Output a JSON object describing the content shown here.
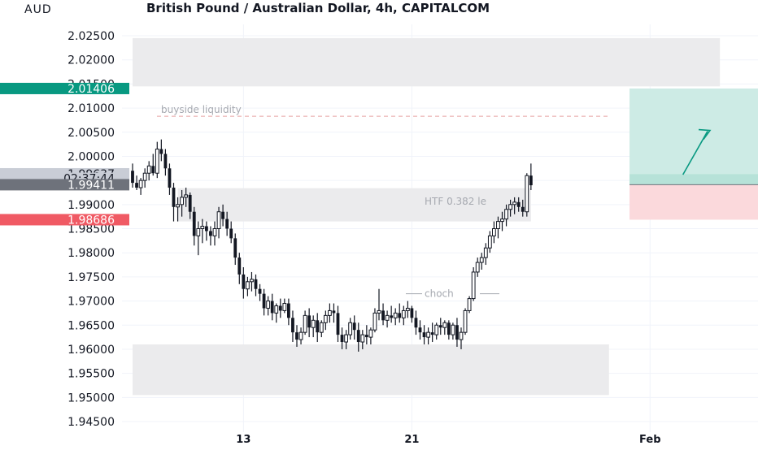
{
  "header": {
    "title": "British Pound / Australian Dollar, 4h, CAPITALCOM",
    "currency": "AUD"
  },
  "price_axis": {
    "ticks": [
      "2.02500",
      "2.02000",
      "2.01500",
      "2.01000",
      "2.00500",
      "2.00000",
      "1.99500",
      "1.99000",
      "1.98500",
      "1.98000",
      "1.97500",
      "1.97000",
      "1.96500",
      "1.96000",
      "1.95500",
      "1.95000",
      "1.94500"
    ]
  },
  "time_axis": {
    "ticks": [
      {
        "label": "13",
        "index": 27
      },
      {
        "label": "21",
        "index": 68
      },
      {
        "label": "Feb",
        "index": 126
      }
    ]
  },
  "price_labels": [
    {
      "name": "target-price-label",
      "text": "2.01406",
      "price": 2.01406,
      "color": "#089981"
    },
    {
      "name": "current-price-label",
      "text": "1.99637",
      "price": 1.99637,
      "color": "#c9cdd6"
    },
    {
      "name": "countdown-label",
      "text": "02:37:44",
      "price": 1.9941,
      "color": "#c9cdd6"
    },
    {
      "name": "entry-price-label",
      "text": "1.99411",
      "price": 1.99411,
      "color": "#6e727b"
    },
    {
      "name": "stop-price-label",
      "text": "1.98686",
      "price": 1.98686,
      "color": "#f05a64"
    }
  ],
  "annotations": {
    "buyside": "buyside liquidity",
    "htf": "HTF 0.382 le",
    "choch": "choch"
  },
  "colors": {
    "candle": "#131722",
    "zone": "#ebebed",
    "profit": "#cdebe5",
    "loss": "#fbd9dc",
    "arrow": "#089981",
    "dashed": "#e8a0a0",
    "grid": "#f0f3fa",
    "annotation": "#a6a9b0"
  },
  "chart_data": {
    "type": "candlestick",
    "title": "British Pound / Australian Dollar, 4h, CAPITALCOM",
    "ylabel": "AUD",
    "ylim": [
      1.9435,
      2.0275
    ],
    "y_ticks": [
      2.025,
      2.02,
      2.015,
      2.01,
      2.005,
      2.0,
      1.995,
      1.99,
      1.985,
      1.98,
      1.975,
      1.97,
      1.965,
      1.96,
      1.955,
      1.95,
      1.945
    ],
    "x_ticks": [
      "13",
      "21",
      "Feb"
    ],
    "candles": [
      [
        1.997,
        1.9985,
        1.9935,
        1.9945
      ],
      [
        1.9945,
        1.996,
        1.993,
        1.9935
      ],
      [
        1.9935,
        1.9955,
        1.992,
        1.995
      ],
      [
        1.995,
        1.9975,
        1.9935,
        1.9965
      ],
      [
        1.9965,
        1.999,
        1.995,
        1.998
      ],
      [
        1.998,
        2.0005,
        1.996,
        1.9965
      ],
      [
        1.9965,
        2.003,
        1.9955,
        2.0015
      ],
      [
        2.0015,
        2.0035,
        1.999,
        2.0005
      ],
      [
        2.0005,
        2.0015,
        1.996,
        1.9975
      ],
      [
        1.9975,
        1.9985,
        1.992,
        1.9935
      ],
      [
        1.9935,
        1.9945,
        1.9865,
        1.9895
      ],
      [
        1.9895,
        1.9915,
        1.9865,
        1.99
      ],
      [
        1.99,
        1.993,
        1.9875,
        1.9915
      ],
      [
        1.9915,
        1.9935,
        1.9895,
        1.992
      ],
      [
        1.992,
        1.9925,
        1.987,
        1.9885
      ],
      [
        1.9885,
        1.9895,
        1.9815,
        1.9835
      ],
      [
        1.9835,
        1.9865,
        1.9795,
        1.985
      ],
      [
        1.985,
        1.987,
        1.982,
        1.9855
      ],
      [
        1.9855,
        1.9865,
        1.9825,
        1.9845
      ],
      [
        1.9845,
        1.9855,
        1.9815,
        1.9835
      ],
      [
        1.9835,
        1.9865,
        1.9815,
        1.985
      ],
      [
        1.985,
        1.9895,
        1.983,
        1.9885
      ],
      [
        1.9885,
        1.99,
        1.9855,
        1.987
      ],
      [
        1.987,
        1.9885,
        1.9835,
        1.985
      ],
      [
        1.985,
        1.9865,
        1.982,
        1.983
      ],
      [
        1.983,
        1.984,
        1.9775,
        1.979
      ],
      [
        1.979,
        1.98,
        1.9735,
        1.9755
      ],
      [
        1.9755,
        1.977,
        1.9705,
        1.9725
      ],
      [
        1.9725,
        1.975,
        1.971,
        1.974
      ],
      [
        1.974,
        1.976,
        1.972,
        1.9745
      ],
      [
        1.9745,
        1.9755,
        1.971,
        1.9725
      ],
      [
        1.9725,
        1.9735,
        1.97,
        1.9715
      ],
      [
        1.9715,
        1.9725,
        1.967,
        1.9685
      ],
      [
        1.9685,
        1.971,
        1.967,
        1.97
      ],
      [
        1.97,
        1.9715,
        1.966,
        1.9675
      ],
      [
        1.9675,
        1.9695,
        1.9655,
        1.969
      ],
      [
        1.969,
        1.9705,
        1.9665,
        1.968
      ],
      [
        1.968,
        1.9705,
        1.9675,
        1.9695
      ],
      [
        1.9695,
        1.9705,
        1.965,
        1.9665
      ],
      [
        1.9665,
        1.968,
        1.9615,
        1.9635
      ],
      [
        1.9635,
        1.965,
        1.9605,
        1.962
      ],
      [
        1.962,
        1.9645,
        1.961,
        1.9635
      ],
      [
        1.9635,
        1.968,
        1.963,
        1.967
      ],
      [
        1.967,
        1.9685,
        1.9625,
        1.9645
      ],
      [
        1.9645,
        1.967,
        1.9625,
        1.966
      ],
      [
        1.966,
        1.9675,
        1.9615,
        1.9635
      ],
      [
        1.9635,
        1.966,
        1.9625,
        1.9655
      ],
      [
        1.9655,
        1.968,
        1.964,
        1.967
      ],
      [
        1.967,
        1.9695,
        1.9655,
        1.968
      ],
      [
        1.968,
        1.9695,
        1.9655,
        1.9675
      ],
      [
        1.9675,
        1.969,
        1.9615,
        1.963
      ],
      [
        1.963,
        1.9645,
        1.96,
        1.9615
      ],
      [
        1.9615,
        1.964,
        1.96,
        1.963
      ],
      [
        1.963,
        1.9665,
        1.962,
        1.9655
      ],
      [
        1.9655,
        1.967,
        1.962,
        1.964
      ],
      [
        1.964,
        1.9655,
        1.9595,
        1.9615
      ],
      [
        1.9615,
        1.964,
        1.96,
        1.963
      ],
      [
        1.963,
        1.965,
        1.961,
        1.9625
      ],
      [
        1.9625,
        1.9645,
        1.961,
        1.964
      ],
      [
        1.964,
        1.9685,
        1.9635,
        1.9675
      ],
      [
        1.9675,
        1.9725,
        1.966,
        1.968
      ],
      [
        1.968,
        1.9695,
        1.965,
        1.966
      ],
      [
        1.966,
        1.968,
        1.9645,
        1.967
      ],
      [
        1.967,
        1.969,
        1.9655,
        1.9665
      ],
      [
        1.9665,
        1.9685,
        1.965,
        1.9675
      ],
      [
        1.9675,
        1.9695,
        1.9655,
        1.9665
      ],
      [
        1.9665,
        1.969,
        1.965,
        1.968
      ],
      [
        1.968,
        1.97,
        1.9665,
        1.9685
      ],
      [
        1.9685,
        1.969,
        1.9655,
        1.9665
      ],
      [
        1.9665,
        1.968,
        1.963,
        1.9645
      ],
      [
        1.9645,
        1.966,
        1.962,
        1.9635
      ],
      [
        1.9635,
        1.965,
        1.961,
        1.9625
      ],
      [
        1.9625,
        1.9645,
        1.961,
        1.9635
      ],
      [
        1.9635,
        1.9655,
        1.9615,
        1.963
      ],
      [
        1.963,
        1.9655,
        1.962,
        1.965
      ],
      [
        1.965,
        1.9665,
        1.963,
        1.9645
      ],
      [
        1.9645,
        1.966,
        1.963,
        1.9655
      ],
      [
        1.9655,
        1.966,
        1.962,
        1.963
      ],
      [
        1.963,
        1.9655,
        1.962,
        1.965
      ],
      [
        1.965,
        1.9665,
        1.9605,
        1.962
      ],
      [
        1.962,
        1.9645,
        1.96,
        1.9635
      ],
      [
        1.9635,
        1.9685,
        1.963,
        1.968
      ],
      [
        1.968,
        1.971,
        1.9675,
        1.9705
      ],
      [
        1.9705,
        1.977,
        1.97,
        1.976
      ],
      [
        1.976,
        1.979,
        1.975,
        1.978
      ],
      [
        1.978,
        1.98,
        1.9765,
        1.979
      ],
      [
        1.979,
        1.982,
        1.9775,
        1.981
      ],
      [
        1.981,
        1.9845,
        1.98,
        1.9835
      ],
      [
        1.9835,
        1.9865,
        1.982,
        1.985
      ],
      [
        1.985,
        1.9875,
        1.983,
        1.9865
      ],
      [
        1.9865,
        1.9885,
        1.9845,
        1.987
      ],
      [
        1.987,
        1.99,
        1.9855,
        1.989
      ],
      [
        1.989,
        1.991,
        1.9875,
        1.99
      ],
      [
        1.99,
        1.9915,
        1.988,
        1.9905
      ],
      [
        1.9905,
        1.9915,
        1.9885,
        1.9895
      ],
      [
        1.9895,
        1.991,
        1.9875,
        1.9885
      ],
      [
        1.9885,
        1.9965,
        1.9875,
        1.996
      ],
      [
        1.996,
        1.9985,
        1.993,
        1.994
      ]
    ],
    "zones": [
      {
        "from_index": 0,
        "to_index": 143,
        "top": 2.0245,
        "bottom": 2.0145
      },
      {
        "from_index": 11,
        "to_index": 97,
        "top": 1.9934,
        "bottom": 1.9865
      },
      {
        "from_index": 0,
        "to_index": 116,
        "top": 1.961,
        "bottom": 1.9505
      }
    ],
    "position": {
      "entry": 1.99411,
      "target": 2.01406,
      "stop": 1.98686,
      "from_index": 121,
      "to_index": 154
    },
    "buyside_level": 2.0083,
    "choch_level": 1.9715
  }
}
